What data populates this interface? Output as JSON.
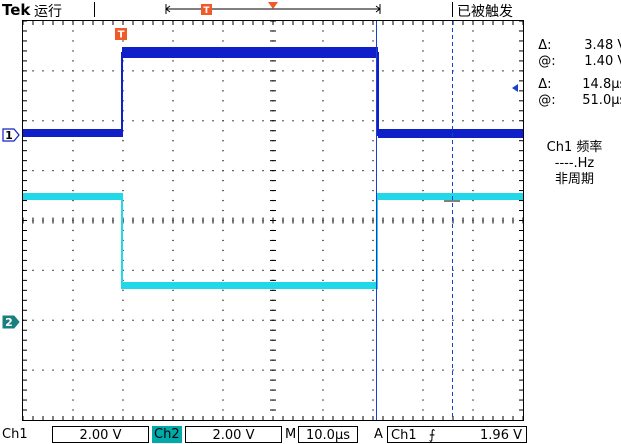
{
  "header": {
    "brand": "Tek",
    "run_state": "运行",
    "trigger_status": "已被触发",
    "trigger_marker": "T",
    "record_marker": "T"
  },
  "markers": {
    "ch1": "1",
    "ch2": "2"
  },
  "measurements": [
    {
      "label": "Δ:",
      "value": "3.48 V"
    },
    {
      "label": "@:",
      "value": "1.40 V"
    },
    {
      "label": "Δ:",
      "value": "14.8µs"
    },
    {
      "label": "@:",
      "value": "51.0µs"
    }
  ],
  "frequency_readout": {
    "title": "Ch1 频率",
    "value": "----.Hz",
    "note": "非周期"
  },
  "bottom_bar": {
    "ch1_label": "Ch1",
    "ch1_scale": "2.00 V",
    "ch2_label": "Ch2",
    "ch2_scale": "2.00 V",
    "timebase_label": "M",
    "timebase": "10.0µs",
    "trigger_mode": "A",
    "trigger_source": "Ch1",
    "trigger_slope": "⨍",
    "trigger_level": "1.96 V"
  },
  "colors": {
    "ch1": "#1020c8",
    "ch2": "#20d8e8",
    "trigger_marker": "#f05a28",
    "ch2_tag": "#00aaaa",
    "cursor": "#1a3fd0"
  }
}
